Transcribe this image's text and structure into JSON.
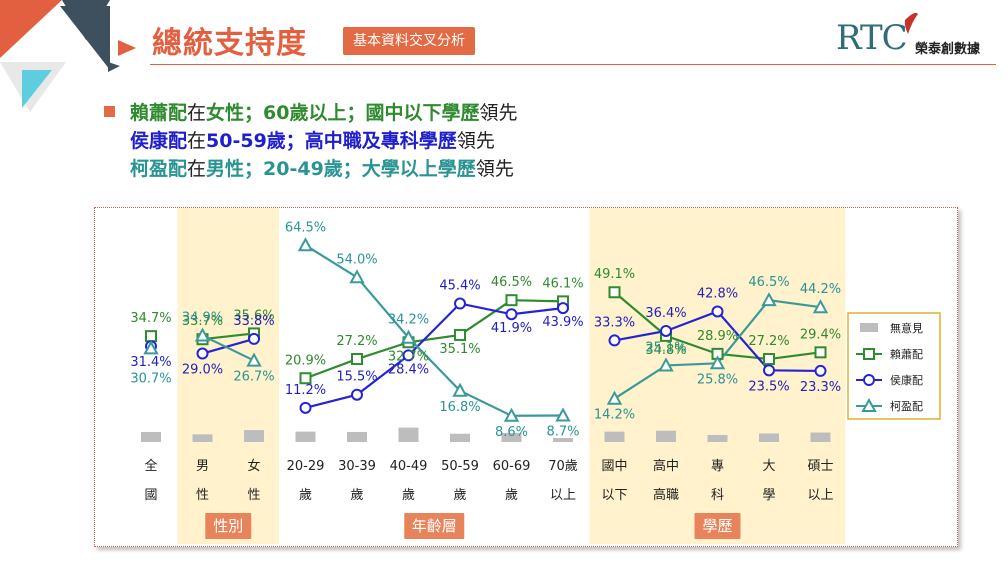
{
  "header": {
    "title": "總統支持度",
    "subtitle": "基本資料交叉分析",
    "logo": "RTC",
    "logo_name": "榮泰創數據"
  },
  "bullets": [
    {
      "parts": [
        {
          "text": "賴蕭配",
          "color": "#2e8b2e",
          "bold": true
        },
        {
          "text": "在",
          "color": "#222222",
          "bold": false
        },
        {
          "text": "女性；60歲以上；國中以下學歷",
          "color": "#2e8b2e",
          "bold": true
        },
        {
          "text": "領先",
          "color": "#222222",
          "bold": false
        }
      ]
    },
    {
      "parts": [
        {
          "text": "侯康配",
          "color": "#1f1fcc",
          "bold": true
        },
        {
          "text": "在",
          "color": "#222222",
          "bold": false
        },
        {
          "text": "50-59歲；高中職及專科學歷",
          "color": "#1f1fcc",
          "bold": true
        },
        {
          "text": "領先",
          "color": "#222222",
          "bold": false
        }
      ]
    },
    {
      "parts": [
        {
          "text": "柯盈配",
          "color": "#2a9494",
          "bold": true
        },
        {
          "text": "在",
          "color": "#222222",
          "bold": false
        },
        {
          "text": "男性；20-49歲；大學以上學歷",
          "color": "#2a9494",
          "bold": true
        },
        {
          "text": "領先",
          "color": "#222222",
          "bold": false
        }
      ]
    }
  ],
  "chart_data": {
    "type": "line",
    "categories": [
      [
        "全",
        "國"
      ],
      [
        "男",
        "性"
      ],
      [
        "女",
        "性"
      ],
      [
        "20-29",
        "歲"
      ],
      [
        "30-39",
        "歲"
      ],
      [
        "40-49",
        "歲"
      ],
      [
        "50-59",
        "歲"
      ],
      [
        "60-69",
        "歲"
      ],
      [
        "70歲",
        "以上"
      ],
      [
        "國中",
        "以下"
      ],
      [
        "高中",
        "高職"
      ],
      [
        "專",
        "科"
      ],
      [
        "大",
        "學"
      ],
      [
        "碩士",
        "以上"
      ]
    ],
    "groups": [
      {
        "label": "性別",
        "from": 1,
        "to": 2
      },
      {
        "label": "年齡層",
        "from": 3,
        "to": 8
      },
      {
        "label": "學歷",
        "from": 9,
        "to": 13
      }
    ],
    "series": [
      {
        "name": "賴蕭配",
        "marker": "square",
        "color": "#2e8b2e",
        "label_color": "#2e8b2e",
        "segments": [
          [
            0
          ],
          [
            1,
            2
          ],
          [
            3,
            4,
            5,
            6,
            7,
            8
          ],
          [
            9,
            10,
            11,
            12,
            13
          ]
        ],
        "values": [
          34.7,
          33.7,
          35.6,
          20.9,
          27.2,
          32.7,
          35.1,
          46.5,
          46.1,
          49.1,
          34.8,
          28.9,
          27.2,
          29.4
        ]
      },
      {
        "name": "侯康配",
        "marker": "circle",
        "color": "#2424d6",
        "label_color": "#2222bb",
        "segments": [
          [
            0
          ],
          [
            1,
            2
          ],
          [
            3,
            4,
            5,
            6,
            7,
            8
          ],
          [
            9,
            10,
            11,
            12,
            13
          ]
        ],
        "values": [
          31.4,
          29.0,
          33.8,
          11.2,
          15.5,
          28.4,
          45.4,
          41.9,
          43.9,
          33.3,
          36.4,
          42.8,
          23.5,
          23.3
        ]
      },
      {
        "name": "柯盈配",
        "marker": "triangle",
        "color": "#3a9a9a",
        "label_color": "#2a9494",
        "segments": [
          [
            0
          ],
          [
            1,
            2
          ],
          [
            3,
            4,
            5,
            6,
            7,
            8
          ],
          [
            9,
            10,
            11,
            12,
            13
          ]
        ],
        "values": [
          30.7,
          34.9,
          26.7,
          64.5,
          54.0,
          34.2,
          16.8,
          8.6,
          8.7,
          14.2,
          25.1,
          25.8,
          46.5,
          44.2
        ]
      },
      {
        "name": "無意見",
        "type": "bar",
        "color": "#bdbdbd",
        "values": [
          3.3,
          2.5,
          3.9,
          3.4,
          3.3,
          4.7,
          2.7,
          3.0,
          1.3,
          3.4,
          3.7,
          2.3,
          2.8,
          3.1
        ]
      }
    ],
    "legend_order": [
      "無意見",
      "賴蕭配",
      "侯康配",
      "柯盈配"
    ],
    "legend_position": "right",
    "ylim": [
      0,
      70
    ]
  }
}
